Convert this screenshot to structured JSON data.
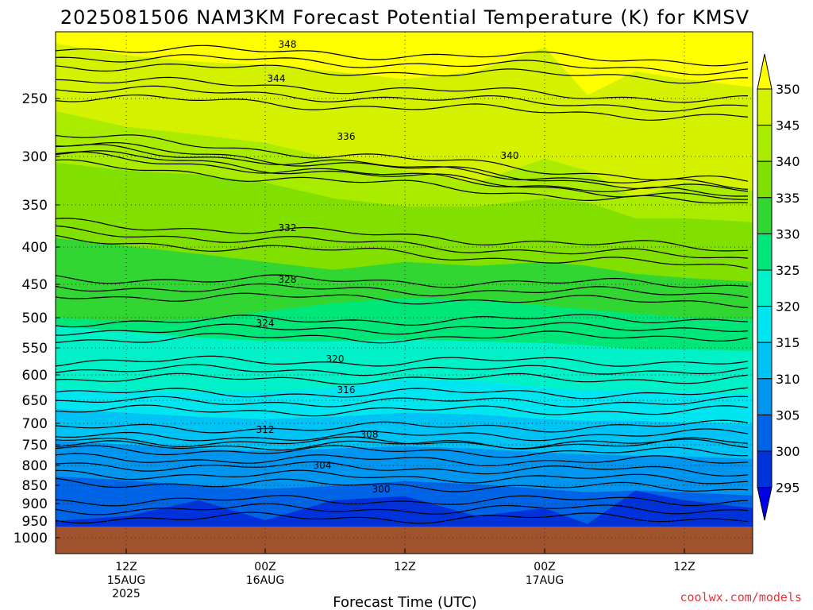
{
  "chart_data": {
    "type": "heatmap",
    "title": "2025081506 NAM3KM Forecast Potential Temperature (K) for KMSV",
    "xlabel": "Forecast Time (UTC)",
    "ylabel": "",
    "y_scale": "log-pressure",
    "ylim": [
      1000,
      200
    ],
    "y_ticks": [
      "250",
      "300",
      "350",
      "400",
      "450",
      "500",
      "550",
      "600",
      "650",
      "700",
      "750",
      "800",
      "850",
      "900",
      "950",
      "1000"
    ],
    "x_ticks": [
      {
        "lines": [
          "12Z",
          "15AUG",
          "2025"
        ]
      },
      {
        "lines": [
          "00Z",
          "16AUG"
        ]
      },
      {
        "lines": [
          "12Z"
        ]
      },
      {
        "lines": [
          "00Z",
          "17AUG"
        ]
      },
      {
        "lines": [
          "12Z"
        ]
      }
    ],
    "colorbar": {
      "levels": [
        "350",
        "345",
        "340",
        "335",
        "330",
        "325",
        "320",
        "315",
        "310",
        "305",
        "300",
        "295"
      ],
      "colors": [
        "#ffff00",
        "#d4f200",
        "#aaec00",
        "#82e000",
        "#32d632",
        "#00e678",
        "#00f0c8",
        "#00e6f0",
        "#00c3f5",
        "#0096f0",
        "#0064e6",
        "#0032dc",
        "#0000e6"
      ]
    },
    "ground_color": "#a0522d",
    "contours": [
      {
        "label": "348",
        "value": 348
      },
      {
        "label": "344",
        "value": 344
      },
      {
        "label": "340",
        "value": 340
      },
      {
        "label": "336",
        "value": 336
      },
      {
        "label": "332",
        "value": 332
      },
      {
        "label": "328",
        "value": 328
      },
      {
        "label": "324",
        "value": 324
      },
      {
        "label": "320",
        "value": 320
      },
      {
        "label": "316",
        "value": 316
      },
      {
        "label": "312",
        "value": 312
      },
      {
        "label": "308",
        "value": 308
      },
      {
        "label": "304",
        "value": 304
      },
      {
        "label": "300",
        "value": 300
      }
    ],
    "grid": true
  },
  "credit": "coolwx.com/models"
}
